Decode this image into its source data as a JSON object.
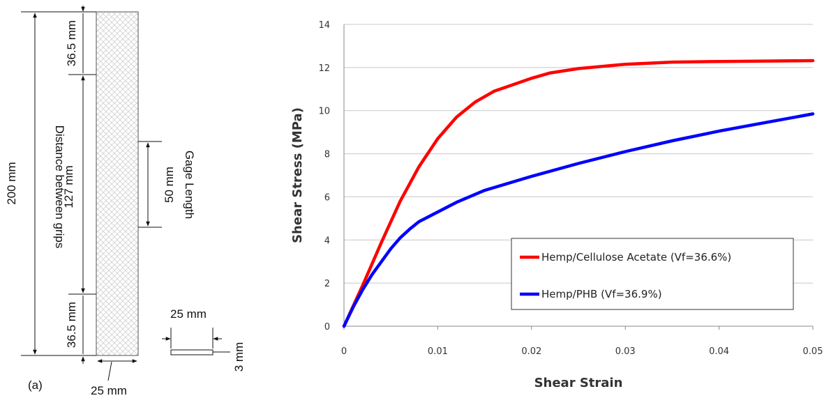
{
  "specimen": {
    "total_length_label": "200 mm",
    "grip_distance_label": "Distance between grips",
    "middle_length_label": "127 mm",
    "top_tab_label": "36.5 mm",
    "bottom_tab_label": "36.5 mm",
    "gage_length_value_label": "50 mm",
    "gage_length_text": "Gage Length",
    "width_label": "25 mm",
    "section_width_label": "25 mm",
    "thickness_label": "3 mm",
    "panel_label": "(a)"
  },
  "chart_data": {
    "type": "line",
    "title": "",
    "xlabel": "Shear Strain",
    "ylabel": "Shear Stress (MPa)",
    "xlim": [
      0,
      0.05
    ],
    "ylim": [
      0,
      14
    ],
    "xticks": [
      "0",
      "0.01",
      "0.02",
      "0.03",
      "0.04",
      "0.05"
    ],
    "yticks": [
      "0",
      "2",
      "4",
      "6",
      "8",
      "10",
      "12",
      "14"
    ],
    "grid": "horizontal",
    "legend_position": "bottom-right",
    "series": [
      {
        "name": "Hemp/Cellulose Acetate (Vf=36.6%)",
        "color": "#ff0000",
        "points": [
          [
            0,
            0
          ],
          [
            0.002,
            1.9
          ],
          [
            0.004,
            3.9
          ],
          [
            0.006,
            5.8
          ],
          [
            0.008,
            7.4
          ],
          [
            0.01,
            8.7
          ],
          [
            0.012,
            9.7
          ],
          [
            0.014,
            10.4
          ],
          [
            0.016,
            10.9
          ],
          [
            0.018,
            11.2
          ],
          [
            0.02,
            11.5
          ],
          [
            0.022,
            11.75
          ],
          [
            0.025,
            11.95
          ],
          [
            0.03,
            12.15
          ],
          [
            0.035,
            12.25
          ],
          [
            0.04,
            12.28
          ],
          [
            0.045,
            12.3
          ],
          [
            0.05,
            12.32
          ]
        ]
      },
      {
        "name": "Hemp/PHB (Vf=36.9%)",
        "color": "#0000ff",
        "points": [
          [
            0,
            0
          ],
          [
            0.001,
            0.9
          ],
          [
            0.002,
            1.7
          ],
          [
            0.003,
            2.4
          ],
          [
            0.004,
            3.0
          ],
          [
            0.005,
            3.6
          ],
          [
            0.006,
            4.1
          ],
          [
            0.007,
            4.5
          ],
          [
            0.008,
            4.85
          ],
          [
            0.01,
            5.3
          ],
          [
            0.012,
            5.75
          ],
          [
            0.015,
            6.3
          ],
          [
            0.02,
            6.95
          ],
          [
            0.025,
            7.55
          ],
          [
            0.03,
            8.1
          ],
          [
            0.035,
            8.6
          ],
          [
            0.04,
            9.05
          ],
          [
            0.045,
            9.45
          ],
          [
            0.05,
            9.85
          ]
        ]
      }
    ]
  }
}
